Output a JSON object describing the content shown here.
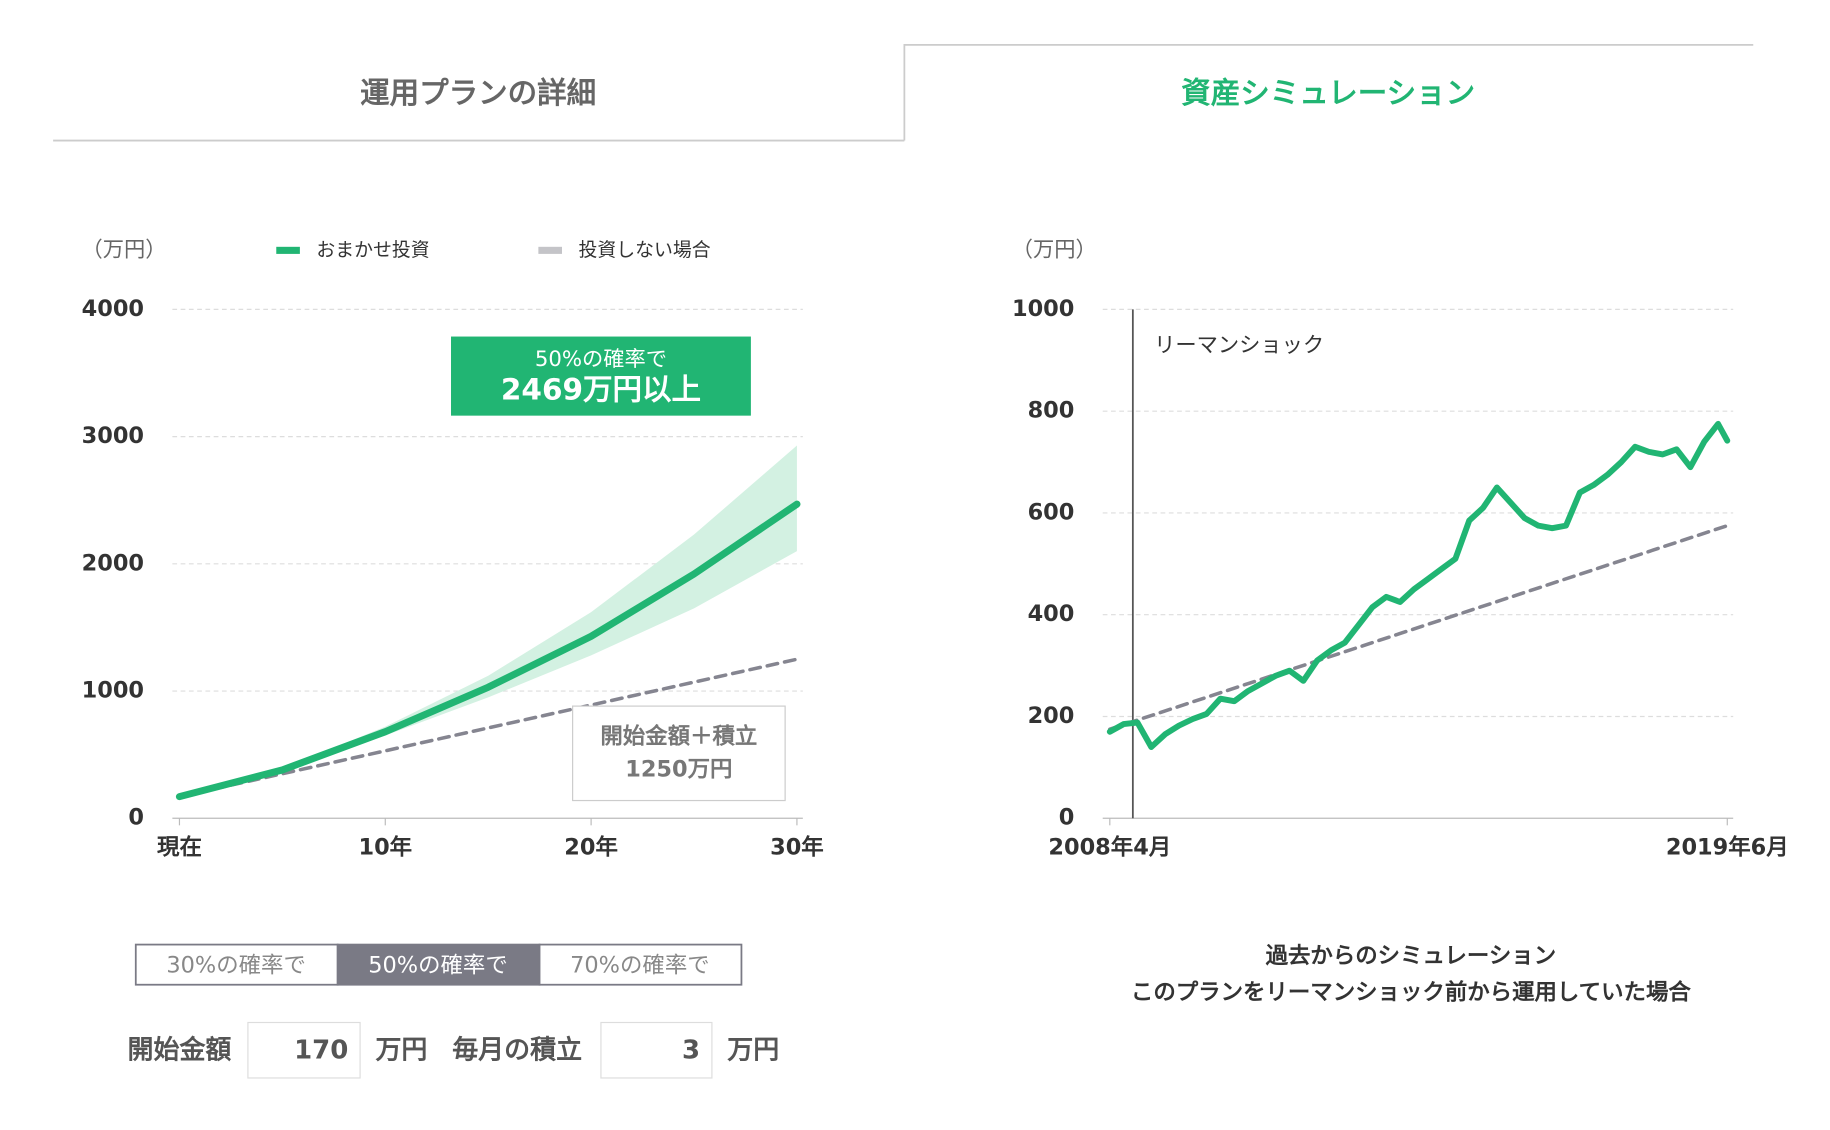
{
  "tabs": [
    "運用プランの詳細",
    "資産シミュレーション"
  ],
  "chart_data": [
    {
      "type": "line",
      "y_unit": "（万円）",
      "x": [
        0,
        5,
        10,
        15,
        20,
        25,
        30
      ],
      "xlim": [
        0,
        30
      ],
      "xticks": [
        {
          "value": 0,
          "label": "現在"
        },
        {
          "value": 10,
          "label": "10年"
        },
        {
          "value": 20,
          "label": "20年"
        },
        {
          "value": 30,
          "label": "30年"
        }
      ],
      "ylim": [
        0,
        4000
      ],
      "yticks": [
        0,
        1000,
        2000,
        3000,
        4000
      ],
      "grid": true,
      "band": {
        "color": "#d3f1e2",
        "upper": [
          170,
          390,
          720,
          1120,
          1620,
          2230,
          2930
        ],
        "lower": [
          170,
          370,
          650,
          950,
          1280,
          1650,
          2100
        ]
      },
      "series": [
        {
          "name": "おまかせ投資",
          "color": "#21b573",
          "values": [
            170,
            380,
            680,
            1030,
            1430,
            1920,
            2469
          ]
        },
        {
          "name": "投資しない場合",
          "color": "#c4c4c8",
          "line_color": "#858590",
          "dashed": true,
          "values": [
            170,
            350,
            530,
            710,
            890,
            1070,
            1250
          ]
        }
      ],
      "annotations": [
        {
          "lines": [
            "50%の確率で",
            "2469万円以上"
          ],
          "color": "#21b573"
        },
        {
          "lines": [
            "開始金額＋積立",
            "1250万円"
          ]
        }
      ]
    },
    {
      "type": "line",
      "y_unit": "（万円）",
      "xlim": [
        "2008-04",
        "2019-06"
      ],
      "xticks": [
        {
          "value": "2008-04",
          "label": "2008年4月"
        },
        {
          "value": "2019-06",
          "label": "2019年6月"
        }
      ],
      "ylim": [
        0,
        1000
      ],
      "yticks": [
        0,
        200,
        400,
        600,
        800,
        1000
      ],
      "grid": true,
      "series": [
        {
          "color": "#21b573",
          "x": [
            "2008-04",
            "2008-07",
            "2008-10",
            "2009-01",
            "2009-04",
            "2009-07",
            "2009-10",
            "2010-01",
            "2010-04",
            "2010-07",
            "2010-10",
            "2011-01",
            "2011-04",
            "2011-07",
            "2011-10",
            "2012-01",
            "2012-04",
            "2012-07",
            "2012-10",
            "2013-01",
            "2013-04",
            "2013-07",
            "2013-10",
            "2014-01",
            "2014-04",
            "2014-07",
            "2014-10",
            "2015-01",
            "2015-04",
            "2015-07",
            "2015-10",
            "2016-01",
            "2016-04",
            "2016-07",
            "2016-10",
            "2017-01",
            "2017-04",
            "2017-07",
            "2017-10",
            "2018-01",
            "2018-04",
            "2018-07",
            "2018-10",
            "2019-01",
            "2019-04",
            "2019-06"
          ],
          "values": [
            170,
            185,
            188,
            140,
            165,
            182,
            195,
            205,
            235,
            230,
            250,
            265,
            280,
            290,
            270,
            310,
            330,
            345,
            380,
            415,
            435,
            425,
            450,
            470,
            490,
            510,
            585,
            610,
            650,
            620,
            590,
            575,
            570,
            575,
            640,
            655,
            675,
            700,
            730,
            720,
            715,
            725,
            690,
            740,
            775,
            742
          ]
        },
        {
          "color": "#858590",
          "dashed": true,
          "x": [
            "2008-04",
            "2019-06"
          ],
          "values": [
            175,
            575
          ]
        }
      ],
      "annotations": [
        {
          "text": "リーマンショック",
          "x": "2008-09"
        }
      ],
      "caption": [
        "過去からのシミュレーション",
        "このプランをリーマンショック前から運用していた場合"
      ]
    }
  ],
  "controls": {
    "options": [
      "30%の確率で",
      "50%の確率で",
      "70%の確率で"
    ],
    "selected": 1,
    "start_label": "開始金額",
    "start_value": "170",
    "unit": "万円",
    "monthly_label": "毎月の積立",
    "monthly_value": "3"
  }
}
